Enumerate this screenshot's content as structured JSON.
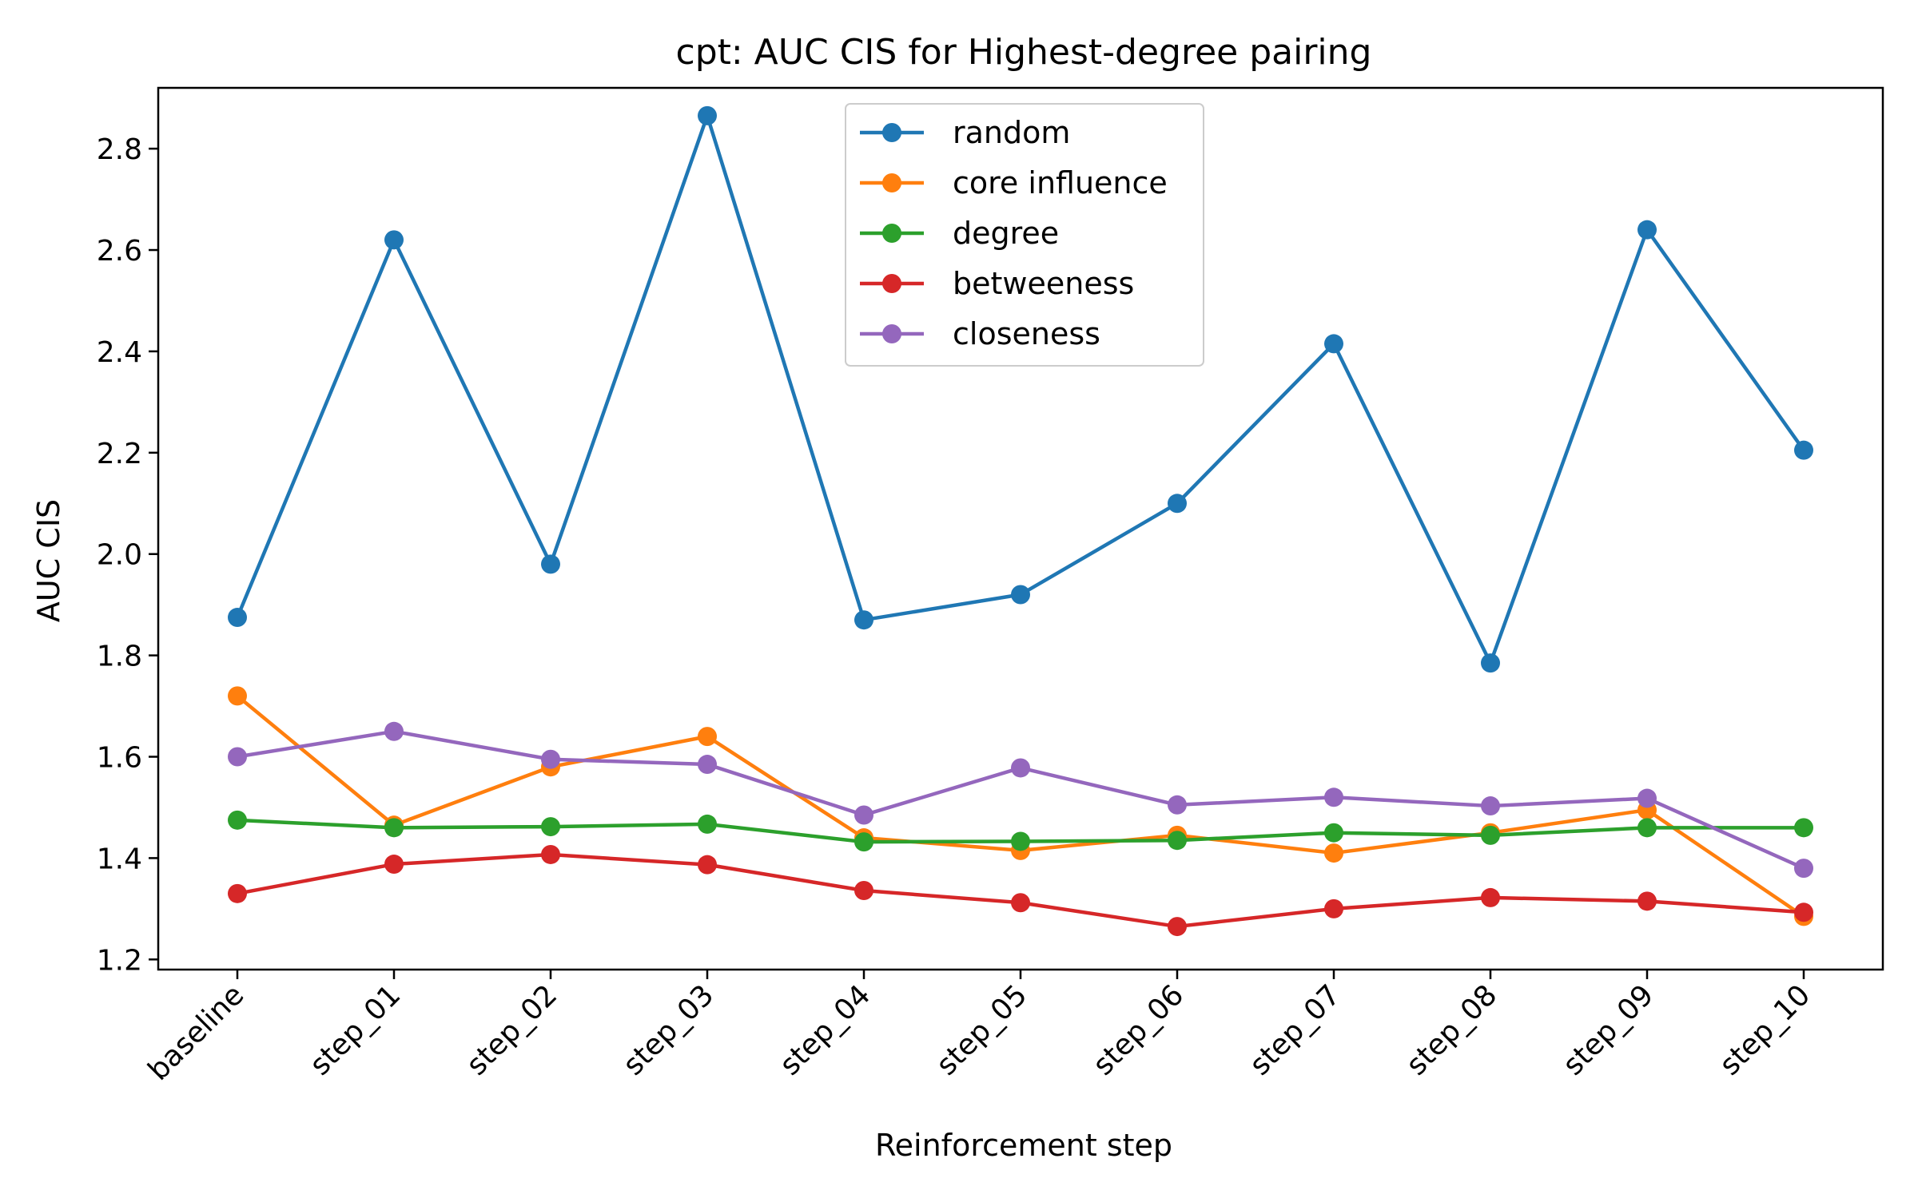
{
  "chart_data": {
    "type": "line",
    "title": "cpt: AUC CIS for Highest-degree pairing",
    "xlabel": "Reinforcement step",
    "ylabel": "AUC CIS",
    "categories": [
      "baseline",
      "step_01",
      "step_02",
      "step_03",
      "step_04",
      "step_05",
      "step_06",
      "step_07",
      "step_08",
      "step_09",
      "step_10"
    ],
    "ylim": [
      1.18,
      2.92
    ],
    "yticks": [
      1.2,
      1.4,
      1.6,
      1.8,
      2.0,
      2.2,
      2.4,
      2.6,
      2.8
    ],
    "ytick_labels": [
      "1.2",
      "1.4",
      "1.6",
      "1.8",
      "2.0",
      "2.2",
      "2.4",
      "2.6",
      "2.8"
    ],
    "grid": false,
    "legend_position": "top-center",
    "series": [
      {
        "name": "random",
        "color": "#1f77b4",
        "values": [
          1.875,
          2.62,
          1.98,
          2.865,
          1.87,
          1.92,
          2.1,
          2.415,
          1.785,
          2.64,
          2.205
        ]
      },
      {
        "name": "core influence",
        "color": "#ff7f0e",
        "values": [
          1.72,
          1.465,
          1.58,
          1.64,
          1.44,
          1.415,
          1.445,
          1.41,
          1.45,
          1.495,
          1.285
        ]
      },
      {
        "name": "degree",
        "color": "#2ca02c",
        "values": [
          1.475,
          1.46,
          1.462,
          1.467,
          1.432,
          1.433,
          1.435,
          1.45,
          1.445,
          1.46,
          1.46
        ]
      },
      {
        "name": "betweeness",
        "color": "#d62728",
        "values": [
          1.33,
          1.388,
          1.407,
          1.387,
          1.336,
          1.312,
          1.265,
          1.3,
          1.322,
          1.315,
          1.293
        ]
      },
      {
        "name": "closeness",
        "color": "#9467bd",
        "values": [
          1.6,
          1.65,
          1.595,
          1.585,
          1.485,
          1.578,
          1.505,
          1.52,
          1.503,
          1.518,
          1.38
        ]
      }
    ]
  }
}
